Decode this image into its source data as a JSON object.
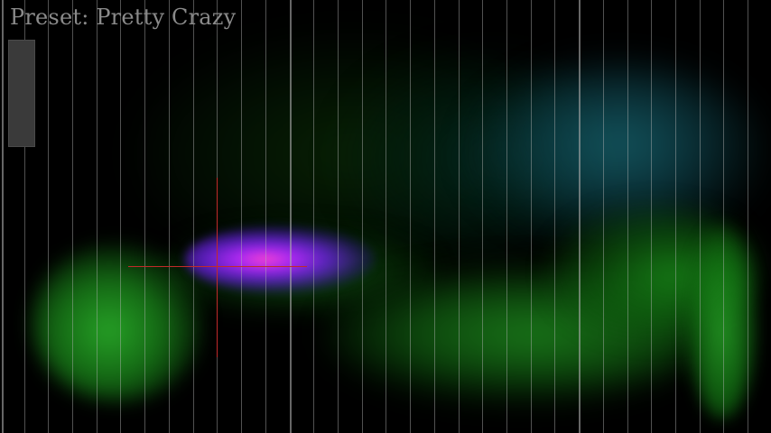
{
  "preset": {
    "prefix": "Preset:",
    "name": "Pretty Crazy"
  },
  "colors": {
    "background": "#000000",
    "grid_line": "#b4b4b4",
    "crosshair": "#c22a2a",
    "label_text": "#8a8a8a",
    "glow_core": "#ff46c8",
    "glow_outer": "#b428ff",
    "green": "#28aa28",
    "teal": "#145a64"
  }
}
